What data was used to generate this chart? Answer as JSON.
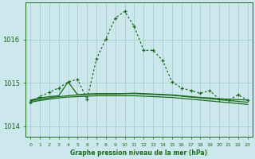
{
  "title": "Graphe pression niveau de la mer (hPa)",
  "bg_color": "#cce8ed",
  "grid_color": "#9fc8cc",
  "line_color": "#1a6b1a",
  "xlim": [
    -0.5,
    23.5
  ],
  "ylim": [
    1013.75,
    1016.85
  ],
  "yticks": [
    1014,
    1015,
    1016
  ],
  "xticks": [
    0,
    1,
    2,
    3,
    4,
    5,
    6,
    7,
    8,
    9,
    10,
    11,
    12,
    13,
    14,
    15,
    16,
    17,
    18,
    19,
    20,
    21,
    22,
    23
  ],
  "line1": [
    1014.6,
    1014.65,
    1014.68,
    1014.7,
    1015.02,
    1014.72,
    1014.74,
    1014.75,
    1014.75,
    1014.75,
    1014.75,
    1014.76,
    1014.75,
    1014.74,
    1014.73,
    1014.72,
    1014.7,
    1014.68,
    1014.66,
    1014.65,
    1014.63,
    1014.62,
    1014.61,
    1014.6
  ],
  "line2": [
    1014.58,
    1014.62,
    1014.65,
    1014.68,
    1014.7,
    1014.72,
    1014.73,
    1014.74,
    1014.74,
    1014.74,
    1014.75,
    1014.75,
    1014.74,
    1014.73,
    1014.72,
    1014.71,
    1014.69,
    1014.67,
    1014.65,
    1014.63,
    1014.61,
    1014.59,
    1014.57,
    1014.55
  ],
  "line3": [
    1014.55,
    1014.59,
    1014.62,
    1014.65,
    1014.67,
    1014.68,
    1014.69,
    1014.7,
    1014.7,
    1014.7,
    1014.7,
    1014.7,
    1014.69,
    1014.68,
    1014.67,
    1014.66,
    1014.64,
    1014.62,
    1014.6,
    1014.58,
    1014.56,
    1014.54,
    1014.52,
    1014.5
  ],
  "main_x": [
    0,
    1,
    2,
    3,
    4,
    5,
    6,
    7,
    8,
    9,
    10,
    11,
    12,
    13,
    14,
    15,
    16,
    17,
    18,
    19,
    20,
    21,
    22,
    23
  ],
  "main_y": [
    1014.55,
    1014.68,
    1014.78,
    1014.88,
    1015.02,
    1015.08,
    1014.62,
    1015.55,
    1016.02,
    1016.5,
    1016.65,
    1016.3,
    1015.75,
    1015.75,
    1015.52,
    1015.02,
    1014.88,
    1014.82,
    1014.76,
    1014.82,
    1014.62,
    1014.6,
    1014.72,
    1014.6
  ]
}
